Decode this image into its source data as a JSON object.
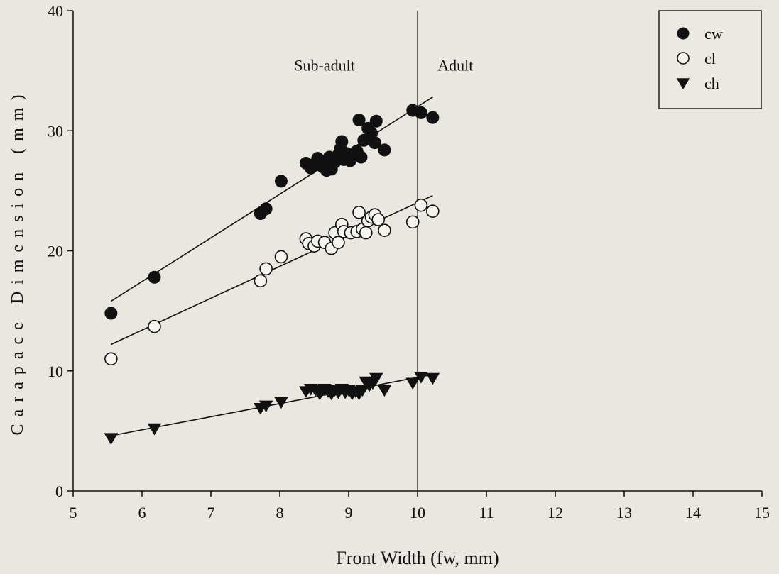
{
  "chart_data": {
    "type": "scatter",
    "xlabel": "Front Width (fw, mm)",
    "ylabel": "Carapace Dimension (mm)",
    "xlim": [
      5,
      15
    ],
    "ylim": [
      0,
      40
    ],
    "xticks": [
      5,
      6,
      7,
      8,
      9,
      10,
      11,
      12,
      13,
      14,
      15
    ],
    "yticks": [
      0,
      10,
      20,
      30,
      40
    ],
    "grid": false,
    "legend_position": "top-right",
    "divider_x": 10,
    "regions": [
      {
        "label": "Sub-adult",
        "x": 8.65,
        "y": 35
      },
      {
        "label": "Adult",
        "x": 10.55,
        "y": 35
      }
    ],
    "series": [
      {
        "name": "cw",
        "marker": "filled-circle",
        "color": "#111111",
        "points": [
          [
            5.55,
            14.8
          ],
          [
            6.18,
            17.8
          ],
          [
            7.72,
            23.1
          ],
          [
            7.8,
            23.5
          ],
          [
            8.02,
            25.8
          ],
          [
            8.38,
            27.3
          ],
          [
            8.45,
            26.9
          ],
          [
            8.5,
            27.2
          ],
          [
            8.55,
            27.7
          ],
          [
            8.62,
            27.0
          ],
          [
            8.68,
            26.7
          ],
          [
            8.72,
            27.8
          ],
          [
            8.75,
            26.8
          ],
          [
            8.8,
            27.4
          ],
          [
            8.85,
            28.0
          ],
          [
            8.88,
            28.5
          ],
          [
            8.9,
            29.1
          ],
          [
            8.93,
            27.6
          ],
          [
            8.97,
            28.1
          ],
          [
            9.02,
            27.5
          ],
          [
            9.08,
            28.0
          ],
          [
            9.12,
            28.3
          ],
          [
            9.15,
            30.9
          ],
          [
            9.18,
            27.8
          ],
          [
            9.22,
            29.2
          ],
          [
            9.28,
            30.2
          ],
          [
            9.33,
            29.8
          ],
          [
            9.38,
            29.0
          ],
          [
            9.4,
            30.8
          ],
          [
            9.52,
            28.4
          ],
          [
            9.93,
            31.7
          ],
          [
            10.05,
            31.5
          ],
          [
            10.22,
            31.1
          ]
        ],
        "fit": [
          [
            5.55,
            15.8
          ],
          [
            10.22,
            32.8
          ]
        ]
      },
      {
        "name": "cl",
        "marker": "open-circle",
        "color": "#111111",
        "points": [
          [
            5.55,
            11.0
          ],
          [
            6.18,
            13.7
          ],
          [
            7.72,
            17.5
          ],
          [
            7.8,
            18.5
          ],
          [
            8.02,
            19.5
          ],
          [
            8.38,
            21.0
          ],
          [
            8.42,
            20.6
          ],
          [
            8.5,
            20.4
          ],
          [
            8.55,
            20.8
          ],
          [
            8.65,
            20.7
          ],
          [
            8.75,
            20.2
          ],
          [
            8.8,
            21.5
          ],
          [
            8.85,
            20.7
          ],
          [
            8.9,
            22.2
          ],
          [
            8.93,
            21.6
          ],
          [
            9.03,
            21.5
          ],
          [
            9.12,
            21.6
          ],
          [
            9.15,
            23.2
          ],
          [
            9.2,
            21.8
          ],
          [
            9.25,
            21.5
          ],
          [
            9.28,
            22.5
          ],
          [
            9.33,
            22.8
          ],
          [
            9.38,
            23.0
          ],
          [
            9.43,
            22.6
          ],
          [
            9.52,
            21.7
          ],
          [
            9.93,
            22.4
          ],
          [
            10.05,
            23.8
          ],
          [
            10.22,
            23.3
          ]
        ],
        "fit": [
          [
            5.55,
            12.2
          ],
          [
            10.22,
            24.6
          ]
        ]
      },
      {
        "name": "ch",
        "marker": "filled-triangle-down",
        "color": "#111111",
        "points": [
          [
            5.55,
            4.4
          ],
          [
            6.18,
            5.2
          ],
          [
            7.72,
            6.9
          ],
          [
            7.8,
            7.1
          ],
          [
            8.02,
            7.4
          ],
          [
            8.38,
            8.3
          ],
          [
            8.45,
            8.5
          ],
          [
            8.52,
            8.4
          ],
          [
            8.58,
            8.1
          ],
          [
            8.65,
            8.5
          ],
          [
            8.7,
            8.3
          ],
          [
            8.75,
            8.1
          ],
          [
            8.8,
            8.4
          ],
          [
            8.85,
            8.2
          ],
          [
            8.9,
            8.5
          ],
          [
            8.95,
            8.2
          ],
          [
            9.0,
            8.4
          ],
          [
            9.05,
            8.1
          ],
          [
            9.1,
            8.3
          ],
          [
            9.15,
            8.1
          ],
          [
            9.2,
            8.4
          ],
          [
            9.25,
            9.1
          ],
          [
            9.3,
            8.8
          ],
          [
            9.35,
            9.0
          ],
          [
            9.4,
            9.4
          ],
          [
            9.52,
            8.4
          ],
          [
            9.93,
            9.0
          ],
          [
            10.05,
            9.5
          ],
          [
            10.22,
            9.4
          ]
        ],
        "fit": [
          [
            5.55,
            4.6
          ],
          [
            10.22,
            9.7
          ]
        ]
      }
    ]
  }
}
